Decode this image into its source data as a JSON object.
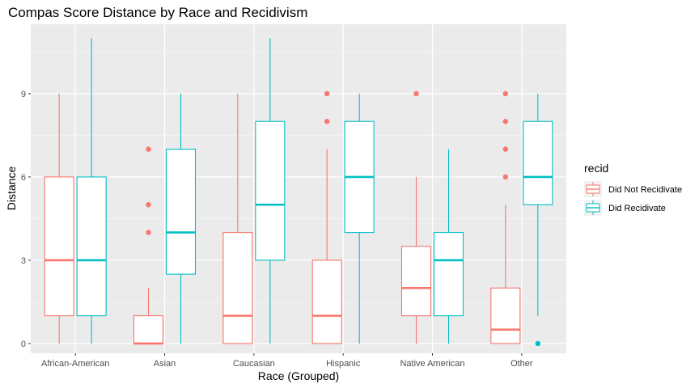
{
  "chart_data": {
    "type": "boxplot",
    "title": "Compas Score Distance by Race and Recidivism",
    "xlabel": "Race (Grouped)",
    "ylabel": "Distance",
    "categories": [
      "African-American",
      "Asian",
      "Caucasian",
      "Hispanic",
      "Native American",
      "Other"
    ],
    "ylim": [
      -0.35,
      11.5
    ],
    "yticks": [
      0,
      3,
      6,
      9
    ],
    "grid": true,
    "legend": {
      "title": "recid",
      "placement": "right"
    },
    "series": [
      {
        "name": "Did Not Recidivate",
        "color": "#F8766D",
        "boxes": [
          {
            "min": 0,
            "q1": 1,
            "median": 3,
            "q3": 6,
            "max": 9,
            "outliers": []
          },
          {
            "min": 0,
            "q1": 0,
            "median": 0,
            "q3": 1,
            "max": 2,
            "outliers": [
              4,
              5,
              7
            ]
          },
          {
            "min": 0,
            "q1": 0,
            "median": 1,
            "q3": 4,
            "max": 9,
            "outliers": []
          },
          {
            "min": 0,
            "q1": 0,
            "median": 1,
            "q3": 3,
            "max": 7,
            "outliers": [
              8,
              9
            ]
          },
          {
            "min": 0,
            "q1": 1,
            "median": 2,
            "q3": 3.5,
            "max": 6,
            "outliers": [
              9
            ]
          },
          {
            "min": 0,
            "q1": 0,
            "median": 0.5,
            "q3": 2,
            "max": 5,
            "outliers": [
              6,
              7,
              8,
              9
            ]
          }
        ]
      },
      {
        "name": "Did Recidivate",
        "color": "#00BFC4",
        "boxes": [
          {
            "min": 0,
            "q1": 1,
            "median": 3,
            "q3": 6,
            "max": 11,
            "outliers": []
          },
          {
            "min": 0,
            "q1": 2.5,
            "median": 4,
            "q3": 7,
            "max": 9,
            "outliers": []
          },
          {
            "min": 0,
            "q1": 3,
            "median": 5,
            "q3": 8,
            "max": 11,
            "outliers": []
          },
          {
            "min": 0,
            "q1": 4,
            "median": 6,
            "q3": 8,
            "max": 9,
            "outliers": []
          },
          {
            "min": 0,
            "q1": 1,
            "median": 3,
            "q3": 4,
            "max": 7,
            "outliers": []
          },
          {
            "min": 1,
            "q1": 5,
            "median": 6,
            "q3": 8,
            "max": 9,
            "outliers": [
              0
            ]
          }
        ]
      }
    ]
  }
}
